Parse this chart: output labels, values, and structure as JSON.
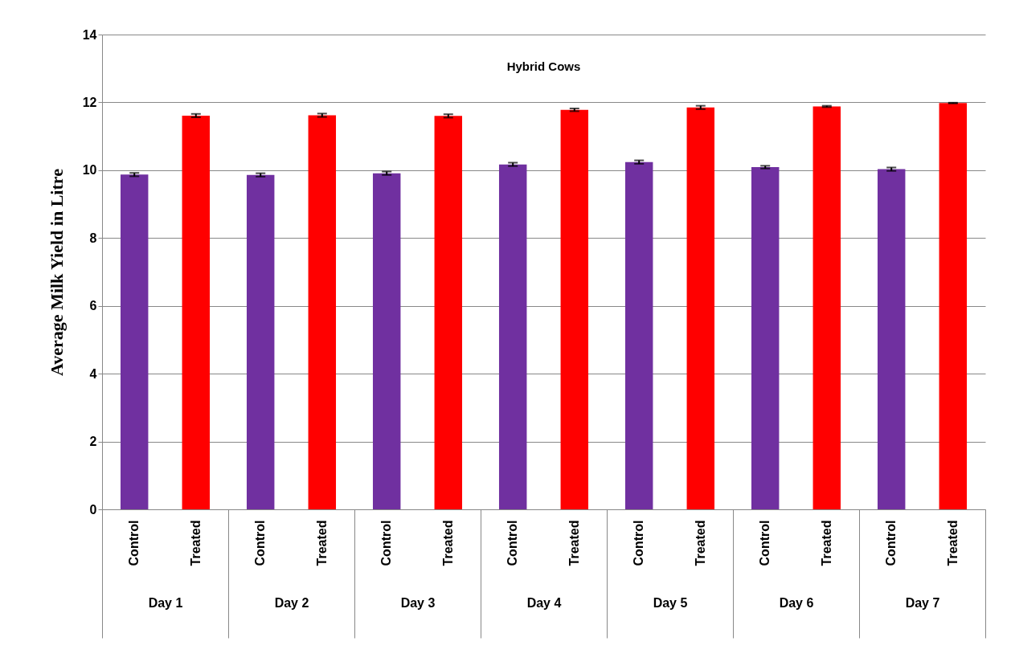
{
  "chart_data": {
    "type": "bar",
    "title": "Hybrid Cows",
    "ylabel": "Average Milk Yield in Litre",
    "categories": [
      "Day 1",
      "Day 2",
      "Day 3",
      "Day 4",
      "Day 5",
      "Day 6",
      "Day 7"
    ],
    "series": [
      {
        "name": "Control",
        "color": "#7030a0",
        "values": [
          9.87,
          9.86,
          9.91,
          10.17,
          10.24,
          10.09,
          10.03
        ],
        "errors": [
          0.05,
          0.05,
          0.05,
          0.05,
          0.05,
          0.04,
          0.05
        ]
      },
      {
        "name": "Treated",
        "color": "#ff0000",
        "values": [
          11.61,
          11.62,
          11.6,
          11.78,
          11.85,
          11.88,
          11.98
        ],
        "errors": [
          0.05,
          0.05,
          0.05,
          0.04,
          0.05,
          0.02,
          0.01
        ]
      }
    ],
    "ylim": [
      0,
      14
    ],
    "yticks": [
      0,
      2,
      4,
      6,
      8,
      10,
      12,
      14
    ],
    "grid": "y",
    "legend": false
  }
}
